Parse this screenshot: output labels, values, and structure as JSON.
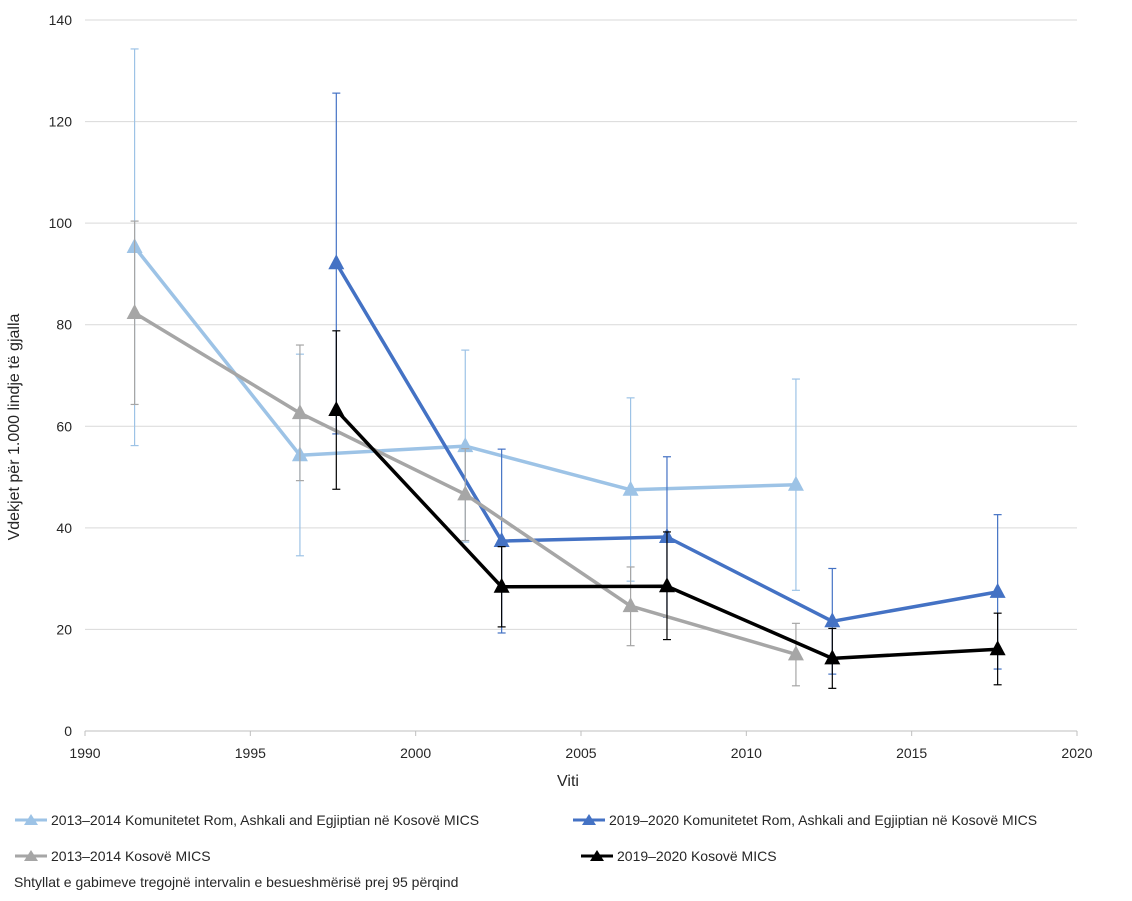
{
  "chart_data": {
    "type": "line",
    "xlabel": "Viti",
    "ylabel": "Vdekjet për 1.000 lindje të gjalla",
    "xlim": [
      1990,
      2020
    ],
    "ylim": [
      0,
      140
    ],
    "xticks": [
      1990,
      1995,
      2000,
      2005,
      2010,
      2015,
      2020
    ],
    "yticks": [
      0,
      20,
      40,
      60,
      80,
      100,
      120,
      140
    ],
    "grid": "horizontal",
    "legend_position": "bottom",
    "series": [
      {
        "name": "2013–2014 Komunitetet Rom, Ashkali and Egjiptian në Kosovë MICS",
        "color": "#9DC3E6",
        "points": [
          {
            "x": 1991.5,
            "y": 95.3,
            "low": 56.2,
            "high": 134.3
          },
          {
            "x": 1996.5,
            "y": 54.3,
            "low": 34.5,
            "high": 74.2
          },
          {
            "x": 2001.5,
            "y": 56.1,
            "low": 37.2,
            "high": 75.0
          },
          {
            "x": 2006.5,
            "y": 47.5,
            "low": 29.5,
            "high": 65.6
          },
          {
            "x": 2011.5,
            "y": 48.5,
            "low": 27.7,
            "high": 69.3
          }
        ]
      },
      {
        "name": "2019–2020 Komunitetet Rom, Ashkali and Egjiptian në Kosovë MICS",
        "color": "#4472C4",
        "points": [
          {
            "x": 1997.6,
            "y": 92.1,
            "low": 58.5,
            "high": 125.6
          },
          {
            "x": 2002.6,
            "y": 37.4,
            "low": 19.3,
            "high": 55.5
          },
          {
            "x": 2007.6,
            "y": 38.2,
            "low": 22.4,
            "high": 54.0
          },
          {
            "x": 2012.6,
            "y": 21.6,
            "low": 11.2,
            "high": 32.0
          },
          {
            "x": 2017.6,
            "y": 27.4,
            "low": 12.2,
            "high": 42.6
          }
        ]
      },
      {
        "name": "2013–2014 Kosovë MICS",
        "color": "#A6A6A6",
        "points": [
          {
            "x": 1991.5,
            "y": 82.3,
            "low": 64.3,
            "high": 100.4
          },
          {
            "x": 1996.5,
            "y": 62.6,
            "low": 49.3,
            "high": 76.0
          },
          {
            "x": 2001.5,
            "y": 46.6,
            "low": 37.5,
            "high": 55.6
          },
          {
            "x": 2006.5,
            "y": 24.6,
            "low": 16.8,
            "high": 32.3
          },
          {
            "x": 2011.5,
            "y": 15.1,
            "low": 8.9,
            "high": 21.2
          }
        ]
      },
      {
        "name": "2019–2020 Kosovë MICS",
        "color": "#000000",
        "points": [
          {
            "x": 1997.6,
            "y": 63.2,
            "low": 47.6,
            "high": 78.8
          },
          {
            "x": 2002.6,
            "y": 28.4,
            "low": 20.5,
            "high": 36.3
          },
          {
            "x": 2007.6,
            "y": 28.5,
            "low": 18.0,
            "high": 39.2
          },
          {
            "x": 2012.6,
            "y": 14.3,
            "low": 8.4,
            "high": 20.2
          },
          {
            "x": 2017.6,
            "y": 16.1,
            "low": 9.1,
            "high": 23.2
          }
        ]
      }
    ]
  },
  "note": "Shtyllat e gabimeve tregojnë intervalin e besueshmërisë prej 95 përqind"
}
